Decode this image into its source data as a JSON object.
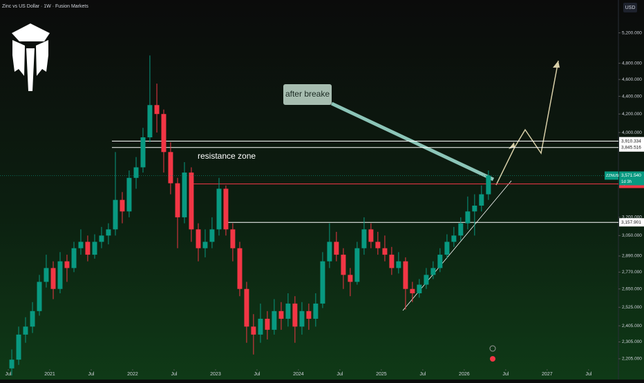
{
  "chart_data": {
    "type": "candlestick",
    "title": "Zinc vs US Dollar · 1W · Fusion Markets",
    "currency": "USD",
    "log_scale": true,
    "up_color": "#089981",
    "down_color": "#f23645",
    "x": [
      2020.542,
      2020.625,
      2020.708,
      2020.792,
      2020.875,
      2020.958,
      2021.042,
      2021.125,
      2021.208,
      2021.292,
      2021.375,
      2021.458,
      2021.542,
      2021.625,
      2021.708,
      2021.792,
      2021.875,
      2021.958,
      2022.042,
      2022.125,
      2022.208,
      2022.292,
      2022.375,
      2022.458,
      2022.542,
      2022.625,
      2022.708,
      2022.792,
      2022.875,
      2022.958,
      2023.042,
      2023.125,
      2023.208,
      2023.292,
      2023.375,
      2023.458,
      2023.542,
      2023.625,
      2023.708,
      2023.792,
      2023.875,
      2023.958,
      2024.042,
      2024.125,
      2024.208,
      2024.292,
      2024.375,
      2024.458,
      2024.542,
      2024.625,
      2024.708,
      2024.792,
      2024.875,
      2024.958,
      2025.042,
      2025.125,
      2025.208,
      2025.292,
      2025.375,
      2025.458,
      2025.542,
      2025.625,
      2025.708,
      2025.792,
      2025.875,
      2025.958,
      2026.042,
      2026.125,
      2026.208,
      2026.292
    ],
    "open": [
      2150,
      2200,
      2350,
      2400,
      2500,
      2700,
      2800,
      2650,
      2850,
      2800,
      2950,
      3000,
      2900,
      3000,
      3050,
      3100,
      3350,
      3250,
      3550,
      3650,
      3950,
      4300,
      4200,
      3800,
      3500,
      3200,
      3600,
      3100,
      2950,
      3000,
      3100,
      3450,
      3100,
      2950,
      2650,
      2400,
      2350,
      2450,
      2380,
      2500,
      2450,
      2550,
      2400,
      2500,
      2450,
      2550,
      2850,
      3000,
      2900,
      2750,
      2700,
      2950,
      3100,
      3000,
      2950,
      2900,
      2800,
      2850,
      2650,
      2620,
      2680,
      2750,
      2800,
      2900,
      3000,
      3050,
      3150,
      3250,
      3300,
      3400
    ],
    "high": [
      2260,
      2400,
      2460,
      2560,
      2750,
      2900,
      2850,
      2920,
      2900,
      3000,
      3100,
      3050,
      3060,
      3120,
      3150,
      3800,
      3420,
      3620,
      3750,
      4050,
      4900,
      4550,
      4250,
      3900,
      3550,
      3700,
      3650,
      3150,
      3100,
      3200,
      3550,
      3480,
      3150,
      3000,
      2700,
      2480,
      2550,
      2500,
      2580,
      2560,
      2620,
      2600,
      2560,
      2550,
      2620,
      2920,
      3150,
      3080,
      2950,
      2800,
      3000,
      3200,
      3150,
      3080,
      3050,
      2960,
      2920,
      2880,
      2700,
      2720,
      2800,
      2850,
      2950,
      3060,
      3120,
      3200,
      3380,
      3400,
      3480,
      3620
    ],
    "low": [
      2110,
      2170,
      2300,
      2360,
      2470,
      2660,
      2580,
      2620,
      2700,
      2770,
      2900,
      2850,
      2870,
      2950,
      2980,
      3050,
      3150,
      3200,
      3450,
      3600,
      3900,
      4000,
      3600,
      3400,
      2950,
      3150,
      3000,
      2850,
      2880,
      2950,
      3050,
      3050,
      2850,
      2600,
      2300,
      2230,
      2300,
      2320,
      2350,
      2380,
      2400,
      2300,
      2350,
      2380,
      2400,
      2520,
      2800,
      2850,
      2650,
      2600,
      2680,
      2900,
      2950,
      2900,
      2850,
      2750,
      2760,
      2510,
      2560,
      2590,
      2650,
      2720,
      2770,
      2870,
      2960,
      3010,
      3100,
      3050,
      3250,
      3350
    ],
    "close": [
      2200,
      2350,
      2400,
      2500,
      2700,
      2800,
      2650,
      2850,
      2800,
      2950,
      3000,
      2900,
      3000,
      3050,
      3100,
      3350,
      3250,
      3550,
      3650,
      3950,
      4300,
      4200,
      3800,
      3500,
      3200,
      3600,
      3100,
      2950,
      3000,
      3100,
      3450,
      3100,
      2950,
      2650,
      2400,
      2350,
      2450,
      2380,
      2500,
      2450,
      2550,
      2400,
      2500,
      2450,
      2550,
      2850,
      3000,
      2900,
      2750,
      2700,
      2950,
      3100,
      3000,
      2950,
      2900,
      2800,
      2850,
      2650,
      2620,
      2680,
      2750,
      2800,
      2900,
      3000,
      3050,
      3150,
      3250,
      3300,
      3400,
      3571.54
    ],
    "xlim": [
      2020.4,
      2027.86
    ],
    "ylim": [
      2165,
      5670
    ],
    "xticks": [
      {
        "value": 2020.5,
        "label": "Jul"
      },
      2021,
      {
        "value": 2021.5,
        "label": "Jul"
      },
      2022,
      {
        "value": 2022.5,
        "label": "Jul"
      },
      2023,
      {
        "value": 2023.5,
        "label": "Jul"
      },
      2024,
      {
        "value": 2024.5,
        "label": "Jul"
      },
      2025,
      {
        "value": 2025.5,
        "label": "Jul"
      },
      2026,
      {
        "value": 2026.5,
        "label": "Jul"
      },
      2027,
      {
        "value": 2027.5,
        "label": "Jul"
      }
    ],
    "yticks": [
      {
        "value": 5200,
        "label": "5,200.000"
      },
      {
        "value": 4800,
        "label": "4,800.000"
      },
      {
        "value": 4600,
        "label": "4,600.000"
      },
      {
        "value": 4400,
        "label": "4,400.000"
      },
      {
        "value": 4200,
        "label": "4,200.000"
      },
      {
        "value": 4000,
        "label": "4,000.000"
      },
      {
        "value": 3200,
        "label": "3,200.000"
      },
      {
        "value": 3050,
        "label": "3,050.000"
      },
      {
        "value": 2890,
        "label": "2,890.000"
      },
      {
        "value": 2770,
        "label": "2,770.000"
      },
      {
        "value": 2650,
        "label": "2,650.000"
      },
      {
        "value": 2525,
        "label": "2,525.000"
      },
      {
        "value": 2405,
        "label": "2,405.000"
      },
      {
        "value": 2305,
        "label": "2,305.000"
      },
      {
        "value": 2205,
        "label": "2,205.000"
      }
    ],
    "levels": [
      {
        "value": 3910.334,
        "label": "3,910.334",
        "from": 2021.75,
        "color": "#ffffff"
      },
      {
        "value": 3845.516,
        "label": "3,845.516",
        "from": 2021.75,
        "color": "#ffffff"
      },
      {
        "value": 3494.057,
        "label": "3,494.057",
        "from": 2022.71,
        "color": "#f23645"
      },
      {
        "value": 3157.901,
        "label": "3,157.901",
        "from": 2023.11,
        "color": "#ffffff"
      }
    ],
    "price_tag": {
      "symbol": "ZZNUSD",
      "label": "3,571.540",
      "countdown": "1d 3h"
    },
    "annotations": {
      "callout": "after breake",
      "zone": "resistance zone"
    }
  }
}
